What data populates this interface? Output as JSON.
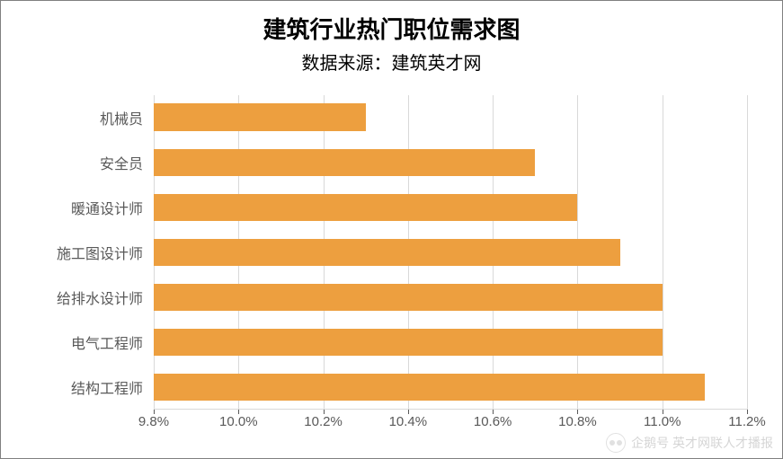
{
  "chart": {
    "type": "bar-horizontal",
    "title": "建筑行业热门职位需求图",
    "subtitle": "数据来源：建筑英才网",
    "title_fontsize": 26,
    "title_fontweight": "bold",
    "subtitle_fontsize": 20,
    "title_color": "#000000",
    "background_color": "#ffffff",
    "border_color": "#808080",
    "bar_color": "#ed9f3f",
    "grid_color": "#d9d9d9",
    "baseline_color": "#d9d9d9",
    "tick_color": "#595959",
    "label_color": "#595959",
    "label_fontsize": 16,
    "tick_fontsize": 15,
    "bar_width_ratio": 0.62,
    "xlim_min": 9.8,
    "xlim_max": 11.2,
    "xtick_values": [
      9.8,
      10.0,
      10.2,
      10.4,
      10.6,
      10.8,
      11.0,
      11.2
    ],
    "xtick_labels": [
      "9.8%",
      "10.0%",
      "10.2%",
      "10.4%",
      "10.6%",
      "10.8%",
      "11.0%",
      "11.2%"
    ],
    "categories": [
      "结构工程师",
      "电气工程师",
      "给排水设计师",
      "施工图设计师",
      "暖通设计师",
      "安全员",
      "机械员"
    ],
    "values": [
      11.1,
      11.0,
      11.0,
      10.9,
      10.8,
      10.7,
      10.3
    ]
  },
  "watermark": {
    "text": "企鹅号 英才网联人才播报"
  }
}
